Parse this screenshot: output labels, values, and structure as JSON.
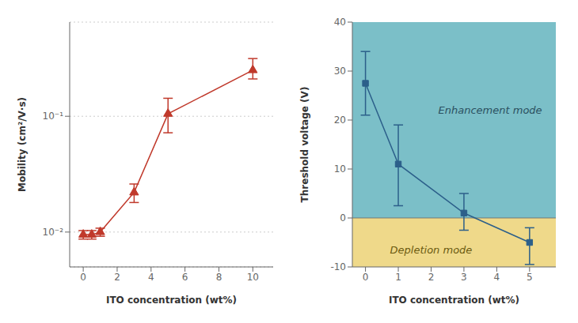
{
  "chart_data": [
    {
      "type": "line",
      "x": [
        0,
        0.5,
        1,
        3,
        5,
        10
      ],
      "values": [
        0.0095,
        0.0095,
        0.01,
        0.022,
        0.105,
        0.25
      ],
      "error_up": [
        0.0008,
        0.0008,
        0.0008,
        0.004,
        0.038,
        0.065
      ],
      "error_down": [
        0.0008,
        0.0008,
        0.0008,
        0.004,
        0.033,
        0.04
      ],
      "color": "#C0392B",
      "marker": "triangle",
      "line_style": "solid",
      "x_label": "ITO concentration  (wt%)",
      "y_label": "Mobility (cm²/V·s)",
      "xlim": [
        -0.8,
        11.2
      ],
      "xticks": [
        0,
        2,
        4,
        6,
        8,
        10
      ],
      "ylim": [
        0.005,
        0.65
      ],
      "yticks": [
        {
          "value": 0.01,
          "label": "10⁻²"
        },
        {
          "value": 0.1,
          "label": "10⁻¹"
        }
      ],
      "log": "y",
      "grid": true
    },
    {
      "type": "line",
      "x": [
        0,
        1,
        3,
        5
      ],
      "values": [
        27.5,
        11.0,
        1.0,
        -5.0
      ],
      "error_up": [
        6.5,
        8.0,
        4.0,
        3.0
      ],
      "error_down": [
        6.5,
        8.5,
        3.5,
        4.5
      ],
      "color": "#2C5F8A",
      "marker": "square",
      "line_style": "solid",
      "x_label": "ITO concentration  (wt%)",
      "y_label": "Threshold voltage (V)",
      "xlim": [
        -0.4,
        5.8
      ],
      "xticks": [
        0,
        1,
        2,
        3,
        4,
        5
      ],
      "ylim": [
        -10,
        40
      ],
      "yticks": [
        -10,
        0,
        10,
        20,
        30,
        40
      ],
      "grid": false,
      "regions": [
        {
          "from": -10,
          "to": 0,
          "color": "#EFD98A"
        },
        {
          "from": 0,
          "to": 40,
          "color": "#7BBFC8"
        }
      ],
      "annotations": [
        {
          "text": "Enhancement mode",
          "x": 3.8,
          "y": 22,
          "color": "#2B5060"
        },
        {
          "text": "Depletion mode",
          "x": 2.0,
          "y": -6.5,
          "color": "#6B5A10"
        }
      ]
    }
  ]
}
